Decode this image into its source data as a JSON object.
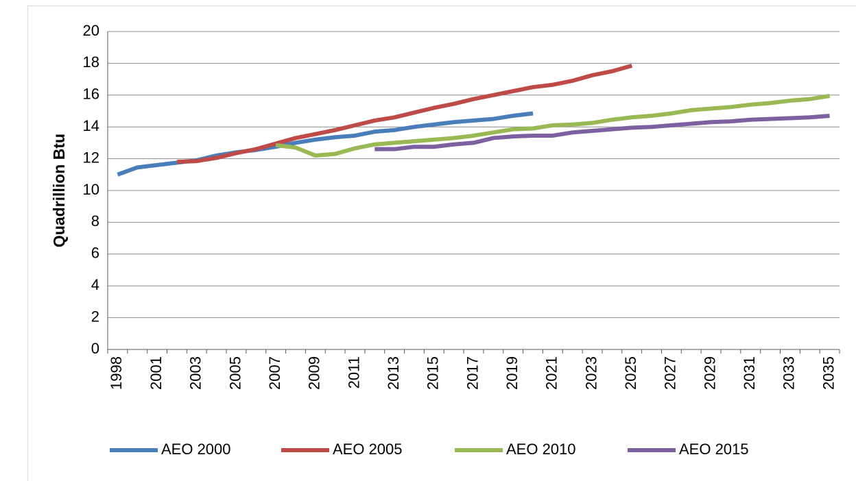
{
  "chart_data": {
    "type": "line",
    "y_label": "Quadrillion Btu",
    "categories": [
      "1998",
      null,
      "2001",
      null,
      "2003",
      null,
      "2005",
      null,
      "2007",
      null,
      "2009",
      null,
      "2011",
      null,
      "2013",
      null,
      "2015",
      null,
      "2017",
      null,
      "2019",
      null,
      "2021",
      null,
      "2023",
      null,
      "2025",
      null,
      "2027",
      null,
      "2029",
      null,
      "2031",
      null,
      "2033",
      null,
      "2035"
    ],
    "series": [
      {
        "name": "AEO 2000",
        "color": "#4a7ebb",
        "values": [
          11.0,
          11.45,
          11.6,
          11.75,
          11.9,
          12.2,
          12.4,
          12.55,
          12.75,
          13.0,
          13.2,
          13.35,
          13.45,
          13.7,
          13.8,
          14.0,
          14.15,
          14.3,
          14.4,
          14.5,
          14.7,
          14.85,
          null,
          null,
          null,
          null,
          null,
          null,
          null,
          null,
          null,
          null,
          null,
          null,
          null,
          null,
          null
        ]
      },
      {
        "name": "AEO 2005",
        "color": "#be4b48",
        "values": [
          null,
          null,
          null,
          11.8,
          11.85,
          12.05,
          12.35,
          12.6,
          12.95,
          13.3,
          13.55,
          13.8,
          14.1,
          14.4,
          14.6,
          14.9,
          15.2,
          15.45,
          15.75,
          16.0,
          16.25,
          16.5,
          16.65,
          16.9,
          17.25,
          17.5,
          17.85,
          null,
          null,
          null,
          null,
          null,
          null,
          null,
          null,
          null,
          null
        ]
      },
      {
        "name": "AEO 2010",
        "color": "#98b954",
        "values": [
          null,
          null,
          null,
          null,
          null,
          null,
          null,
          null,
          12.85,
          12.7,
          12.2,
          12.3,
          12.65,
          12.9,
          13.0,
          13.1,
          13.2,
          13.3,
          13.45,
          13.65,
          13.85,
          13.9,
          14.1,
          14.15,
          14.25,
          14.45,
          14.6,
          14.7,
          14.85,
          15.05,
          15.15,
          15.25,
          15.4,
          15.5,
          15.65,
          15.75,
          15.95
        ]
      },
      {
        "name": "AEO 2015",
        "color": "#7d60a0",
        "values": [
          null,
          null,
          null,
          null,
          null,
          null,
          null,
          null,
          null,
          null,
          null,
          null,
          null,
          12.6,
          12.6,
          12.75,
          12.75,
          12.9,
          13.0,
          13.3,
          13.4,
          13.45,
          13.45,
          13.65,
          13.75,
          13.85,
          13.95,
          14.0,
          14.1,
          14.2,
          14.3,
          14.35,
          14.45,
          14.5,
          14.55,
          14.6,
          14.7
        ]
      }
    ],
    "ylim": [
      0,
      20
    ],
    "yticks": [
      0,
      2,
      4,
      6,
      8,
      10,
      12,
      14,
      16,
      18,
      20
    ],
    "grid": true,
    "legend": "bottom"
  }
}
